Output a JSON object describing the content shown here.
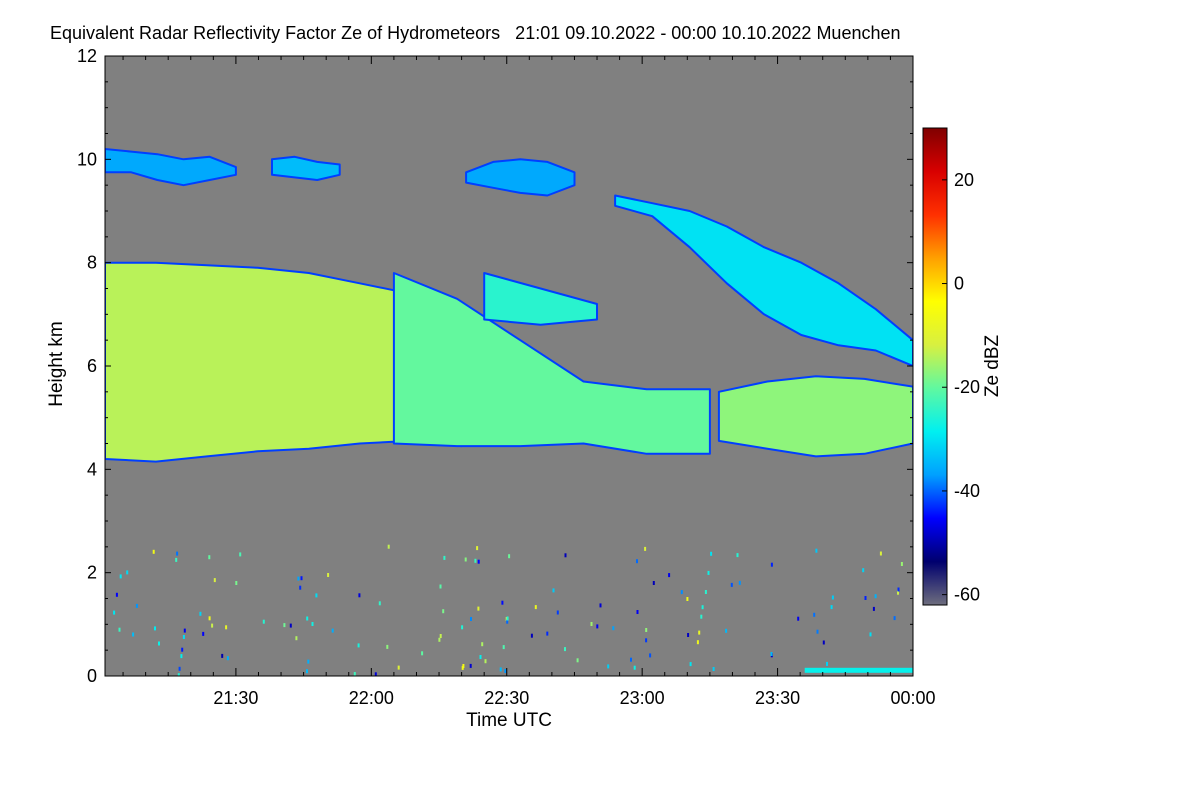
{
  "chart_data": {
    "type": "heatmap",
    "title": "Equivalent Radar Reflectivity Factor Ze of Hydrometeors   21:01 09.10.2022 - 00:00 10.10.2022 Muenchen",
    "xlabel": "Time UTC",
    "ylabel": "Height km",
    "colorbar_label": "Ze dBZ",
    "x_start": "21:01",
    "x_end": "00:00",
    "x_ticks": [
      "21:30",
      "22:00",
      "22:30",
      "23:00",
      "23:30",
      "00:00"
    ],
    "y_ticks": [
      0,
      2,
      4,
      6,
      8,
      10,
      12
    ],
    "ylim": [
      0,
      12
    ],
    "colorbar_ticks": [
      20,
      0,
      -20,
      -40,
      -60
    ],
    "colorbar_range": [
      -62,
      30
    ],
    "missing_value_color": "#808080",
    "colormap": [
      "#6e6e7e",
      "#00006e",
      "#0000ff",
      "#00a0ff",
      "#00f0f0",
      "#60f8a0",
      "#d8f040",
      "#ffff00",
      "#ffa000",
      "#ff3000",
      "#d80000",
      "#800000"
    ],
    "echo_layers": [
      {
        "top": [
          10.2,
          10.15,
          10.1,
          10.0,
          10.05,
          9.85
        ],
        "base": [
          9.75,
          9.75,
          9.6,
          9.5,
          9.6,
          9.7
        ],
        "ze": -36,
        "x0": "21:01",
        "x1": "21:30"
      },
      {
        "top": [
          10.0,
          10.05,
          9.95,
          9.9
        ],
        "base": [
          9.7,
          9.65,
          9.6,
          9.7
        ],
        "ze": -34,
        "x0": "21:38",
        "x1": "21:53"
      },
      {
        "top": [
          9.75,
          9.95,
          10.0,
          9.95,
          9.75
        ],
        "base": [
          9.55,
          9.45,
          9.35,
          9.3,
          9.5
        ],
        "ze": -36,
        "x0": "22:21",
        "x1": "22:45"
      },
      {
        "top": [
          9.3,
          9.15,
          9.0,
          8.7,
          8.3,
          8.0,
          7.6,
          7.1,
          6.5
        ],
        "base": [
          9.1,
          8.9,
          8.3,
          7.6,
          7.0,
          6.6,
          6.4,
          6.3,
          6.0
        ],
        "ze": -30,
        "x0": "22:54",
        "x1": "00:00"
      },
      {
        "top": [
          8.0,
          8.0,
          7.95,
          7.9,
          7.8,
          7.6,
          7.4,
          7.2
        ],
        "base": [
          4.2,
          4.15,
          4.25,
          4.35,
          4.4,
          4.5,
          4.55,
          4.45
        ],
        "ze": -14,
        "x0": "21:01",
        "x1": "22:20"
      },
      {
        "top": [
          7.8,
          7.3,
          6.5,
          5.7,
          5.55,
          5.55
        ],
        "base": [
          4.5,
          4.45,
          4.45,
          4.5,
          4.3,
          4.3
        ],
        "ze": -20,
        "x0": "22:05",
        "x1": "23:15"
      },
      {
        "top": [
          7.8,
          7.5,
          7.2
        ],
        "base": [
          6.9,
          6.8,
          6.9
        ],
        "ze": -25,
        "x0": "22:25",
        "x1": "22:50"
      },
      {
        "top": [
          5.5,
          5.7,
          5.8,
          5.75,
          5.6
        ],
        "base": [
          4.55,
          4.4,
          4.25,
          4.3,
          4.5
        ],
        "ze": -17,
        "x0": "23:17",
        "x1": "00:00"
      }
    ],
    "ground_echo": {
      "x0": "23:36",
      "x1": "00:00",
      "height": 0.1,
      "ze": -28
    }
  }
}
